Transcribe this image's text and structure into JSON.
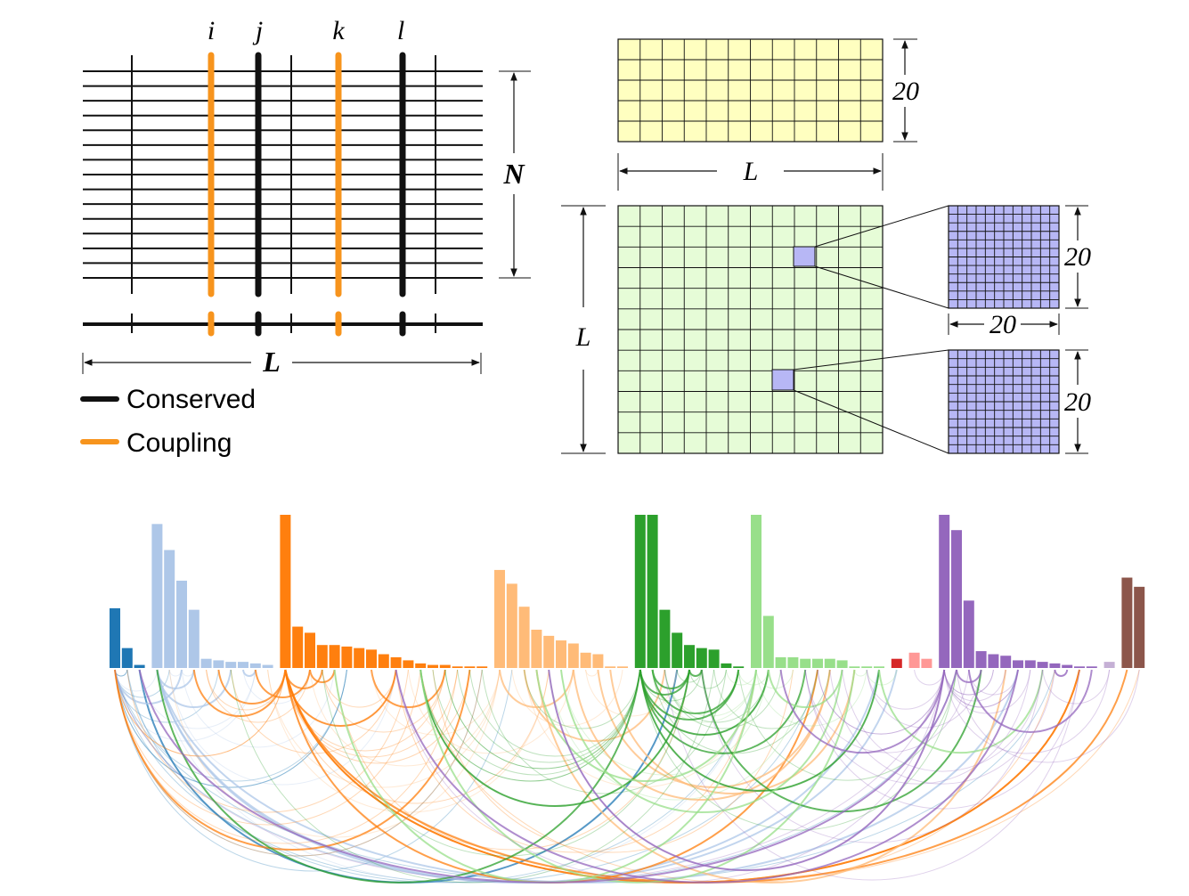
{
  "colors": {
    "black": "#111111",
    "orange": "#f7941d",
    "yellow_fill": "#ffffc0",
    "green_fill": "#e6fcd7",
    "purple_fill": "#b7b7f5"
  },
  "msa": {
    "position_labels": [
      "i",
      "j",
      "k",
      "l"
    ],
    "rows_label": "N",
    "columns_label": "L"
  },
  "legend": {
    "conserved": "Conserved",
    "coupling": "Coupling"
  },
  "matrices": {
    "field_height_label": "20",
    "field_width_label": "L",
    "coupling_height_label": "L",
    "block_top_height_label": "20",
    "block_top_width_label": "20",
    "block_bottom_height_label": "20"
  },
  "chart_data": {
    "type": "bar",
    "groups": [
      {
        "color": "#1f77b4",
        "values": [
          39,
          13,
          2
        ]
      },
      {
        "color": "#aec7e8",
        "values": [
          94,
          77,
          57,
          38,
          6,
          5,
          4,
          4,
          3,
          2
        ]
      },
      {
        "color": "#ff7f0e",
        "values": [
          100,
          27,
          23,
          15,
          15,
          14,
          13,
          12,
          9,
          7,
          5,
          3,
          2,
          2,
          1,
          1,
          1
        ]
      },
      {
        "color": "#ffbb78",
        "values": [
          64,
          55,
          40,
          25,
          21,
          18,
          16,
          10,
          9,
          1,
          1
        ]
      },
      {
        "color": "#2ca02c",
        "values": [
          100,
          100,
          38,
          23,
          15,
          13,
          12,
          3,
          1
        ]
      },
      {
        "color": "#98df8a",
        "values": [
          100,
          34,
          7,
          7,
          6,
          6,
          6,
          5,
          1,
          1,
          1
        ]
      },
      {
        "color": "#d62728",
        "values": [
          6
        ]
      },
      {
        "color": "#ff9896",
        "values": [
          10,
          6
        ]
      },
      {
        "color": "#9467bd",
        "values": [
          100,
          90,
          44,
          11,
          9,
          8,
          5,
          5,
          4,
          3,
          2,
          1,
          1
        ]
      },
      {
        "color": "#c5b0d5",
        "values": [
          4
        ]
      },
      {
        "color": "#8c564b",
        "values": [
          59,
          53
        ]
      }
    ],
    "ylim": [
      0,
      100
    ]
  }
}
